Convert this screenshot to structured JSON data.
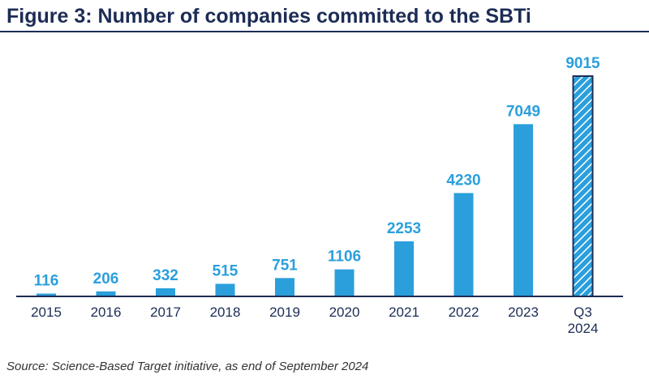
{
  "title": "Figure 3: Number of companies committed to the SBTi",
  "source": "Source: Science-Based Target initiative, as end of September 2024",
  "colors": {
    "bar": "#2b9fdc",
    "label": "#2b9fdc",
    "axis": "#1c2c55",
    "tick_text": "#1c2c55",
    "title": "#1c2c55",
    "highlight_outline": "#1c2c55",
    "hatch_fill": "#2b9fdc",
    "hatch_line": "#ffffff"
  },
  "chart_data": {
    "type": "bar",
    "title": "Figure 3: Number of companies committed to the SBTi",
    "xlabel": "",
    "ylabel": "",
    "ylim": [
      0,
      10000
    ],
    "grid": false,
    "legend": "none",
    "categories": [
      [
        "2015"
      ],
      [
        "2016"
      ],
      [
        "2017"
      ],
      [
        "2018"
      ],
      [
        "2019"
      ],
      [
        "2020"
      ],
      [
        "2021"
      ],
      [
        "2022"
      ],
      [
        "2023"
      ],
      [
        "Q3",
        "2024"
      ]
    ],
    "values": [
      116,
      206,
      332,
      515,
      751,
      1106,
      2253,
      4230,
      7049,
      9015
    ],
    "hatched_index": 9
  }
}
